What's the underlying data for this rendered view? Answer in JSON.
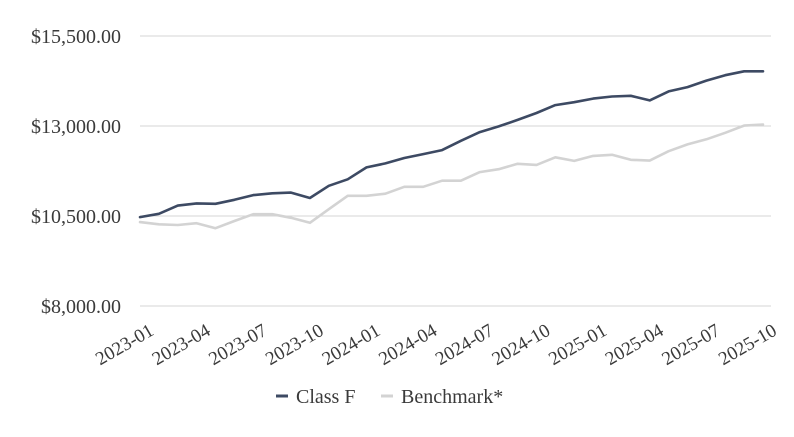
{
  "chart_data": {
    "type": "line",
    "title": "",
    "xlabel": "",
    "ylabel": "",
    "ylim": [
      8000,
      15500
    ],
    "yticks": [
      "$8,000.00",
      "$10,500.00",
      "$13,000.00",
      "$15,500.00"
    ],
    "ytick_values": [
      8000,
      10500,
      13000,
      15500
    ],
    "xticks": [
      "2023-01",
      "2023-04",
      "2023-07",
      "2023-10",
      "2024-01",
      "2024-04",
      "2024-07",
      "2024-10",
      "2025-01",
      "2025-04",
      "2025-07",
      "2025-10"
    ],
    "x": [
      "2023-01",
      "2023-02",
      "2023-03",
      "2023-04",
      "2023-05",
      "2023-06",
      "2023-07",
      "2023-08",
      "2023-09",
      "2023-10",
      "2023-11",
      "2023-12",
      "2024-01",
      "2024-02",
      "2024-03",
      "2024-04",
      "2024-05",
      "2024-06",
      "2024-07",
      "2024-08",
      "2024-09",
      "2024-10",
      "2024-11",
      "2024-12",
      "2025-01",
      "2025-02",
      "2025-03",
      "2025-04",
      "2025-05",
      "2025-06",
      "2025-07",
      "2025-08",
      "2025-09",
      "2025-10"
    ],
    "grid": true,
    "legend_position": "bottom",
    "series": [
      {
        "name": "Class F",
        "color": "#3d4a63",
        "values": [
          10470,
          10560,
          10790,
          10850,
          10840,
          10950,
          11080,
          11130,
          11150,
          11000,
          11340,
          11520,
          11850,
          11960,
          12110,
          12220,
          12330,
          12590,
          12830,
          12990,
          13170,
          13360,
          13580,
          13660,
          13760,
          13820,
          13840,
          13710,
          13960,
          14080,
          14260,
          14410,
          14520,
          14520
        ]
      },
      {
        "name": "Benchmark*",
        "color": "#d3d3d3",
        "values": [
          10330,
          10270,
          10250,
          10300,
          10160,
          10360,
          10550,
          10550,
          10450,
          10310,
          10690,
          11060,
          11060,
          11120,
          11310,
          11310,
          11480,
          11480,
          11720,
          11800,
          11950,
          11920,
          12130,
          12030,
          12170,
          12200,
          12060,
          12040,
          12300,
          12490,
          12630,
          12810,
          13010,
          13040
        ]
      }
    ]
  }
}
